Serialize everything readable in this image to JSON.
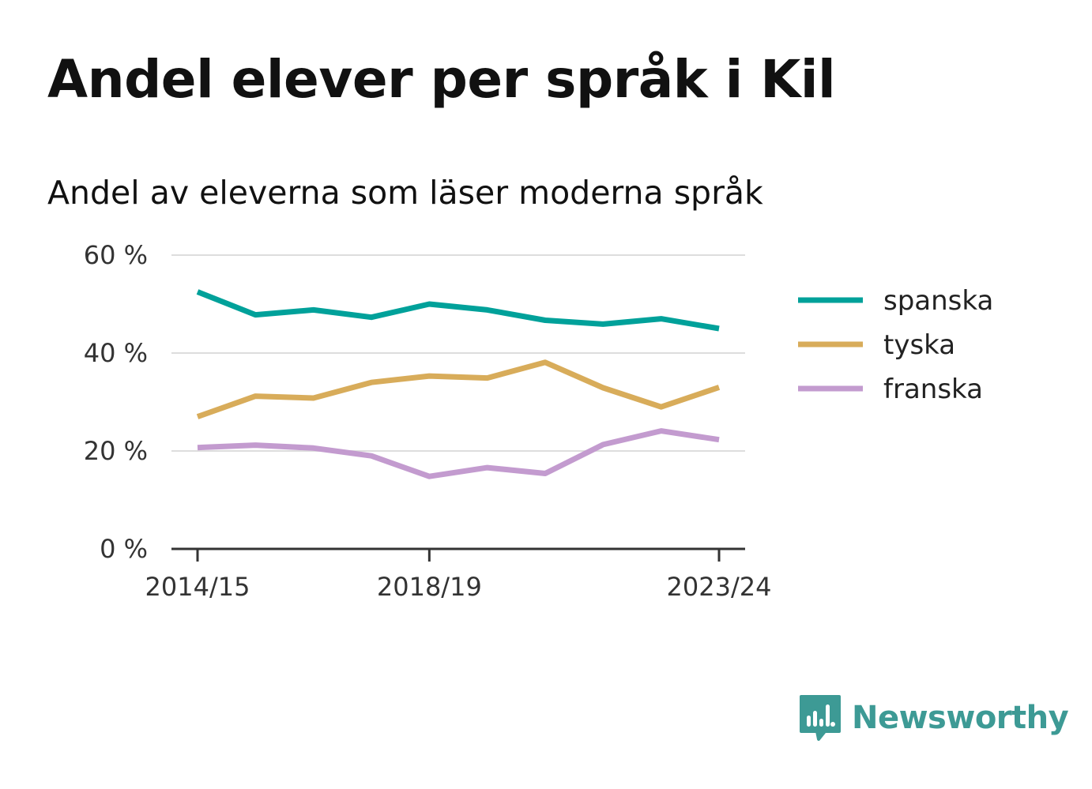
{
  "header": {
    "title": "Andel elever per språk i Kil",
    "subtitle": "Andel av eleverna som läser moderna språk"
  },
  "brand": {
    "name": "Newsworthy",
    "icon": "newsworthy-logo-icon",
    "color": "#3d9a95"
  },
  "chart_data": {
    "type": "line",
    "x": [
      "2014/15",
      "2015/16",
      "2016/17",
      "2017/18",
      "2018/19",
      "2019/20",
      "2020/21",
      "2021/22",
      "2022/23",
      "2023/24"
    ],
    "x_tick_labels": [
      "2014/15",
      "2018/19",
      "2023/24"
    ],
    "y_tick_labels": [
      "0 %",
      "20 %",
      "40 %",
      "60 %"
    ],
    "y_ticks": [
      0,
      20,
      40,
      60
    ],
    "ylim": [
      0,
      60
    ],
    "grid": true,
    "legend_position": "right",
    "series": [
      {
        "name": "spanska",
        "color": "#00a19a",
        "values": [
          52.5,
          47.8,
          48.8,
          47.3,
          50.0,
          48.8,
          46.7,
          45.9,
          47.0,
          45.0
        ]
      },
      {
        "name": "tyska",
        "color": "#d8ac5a",
        "values": [
          27.0,
          31.2,
          30.8,
          34.0,
          35.3,
          34.9,
          38.1,
          32.9,
          29.0,
          33.0
        ]
      },
      {
        "name": "franska",
        "color": "#c39bcf",
        "values": [
          20.7,
          21.2,
          20.6,
          19.0,
          14.8,
          16.6,
          15.4,
          21.3,
          24.1,
          22.3
        ]
      }
    ]
  }
}
